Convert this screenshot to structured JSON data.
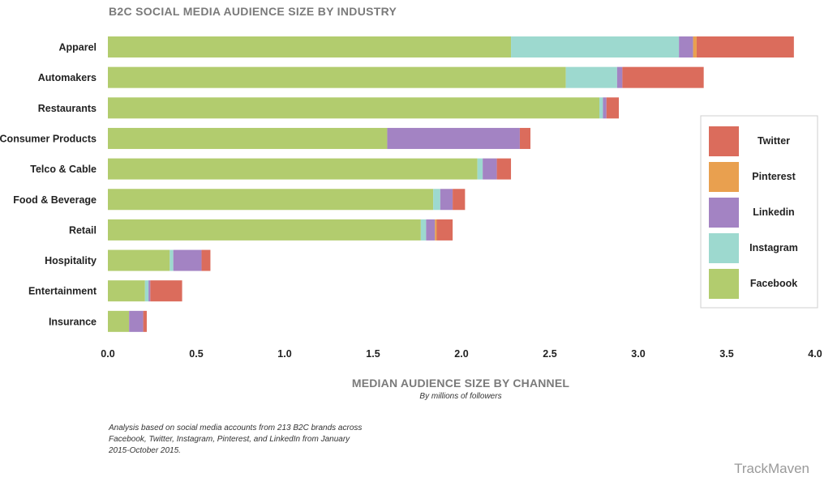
{
  "chart_data": {
    "type": "bar",
    "orientation": "horizontal",
    "stacked": true,
    "title": "B2C SOCIAL MEDIA AUDIENCE SIZE BY INDUSTRY",
    "xlabel": "MEDIAN AUDIENCE SIZE BY CHANNEL",
    "xlabel_sub": "By millions of followers",
    "ylabel": "",
    "xlim": [
      0,
      4.0
    ],
    "xticks": [
      "0.0",
      "0.5",
      "1.0",
      "1.5",
      "2.0",
      "2.5",
      "3.0",
      "3.5",
      "4.0"
    ],
    "grid": false,
    "legend_position": "right",
    "categories": [
      "Apparel",
      "Automakers",
      "Restaurants",
      "Consumer Products",
      "Telco & Cable",
      "Food & Beverage",
      "Retail",
      "Hospitality",
      "Entertainment",
      "Insurance"
    ],
    "series": [
      {
        "name": "Facebook",
        "color": "#b2cc6e",
        "values": [
          2.28,
          2.59,
          2.78,
          1.58,
          2.09,
          1.84,
          1.77,
          0.35,
          0.21,
          0.12
        ]
      },
      {
        "name": "Instagram",
        "color": "#9dd9cf",
        "values": [
          0.95,
          0.29,
          0.02,
          0.0,
          0.03,
          0.04,
          0.03,
          0.02,
          0.02,
          0.0
        ]
      },
      {
        "name": "Linkedin",
        "color": "#a383c3",
        "values": [
          0.08,
          0.03,
          0.02,
          0.75,
          0.08,
          0.07,
          0.05,
          0.16,
          0.01,
          0.08
        ]
      },
      {
        "name": "Pinterest",
        "color": "#e9a04f",
        "values": [
          0.02,
          0.0,
          0.0,
          0.0,
          0.0,
          0.0,
          0.01,
          0.0,
          0.0,
          0.0
        ]
      },
      {
        "name": "Twitter",
        "color": "#db6c5c",
        "values": [
          0.55,
          0.46,
          0.07,
          0.06,
          0.08,
          0.07,
          0.09,
          0.05,
          0.18,
          0.02
        ]
      }
    ],
    "legend_order": [
      "Twitter",
      "Pinterest",
      "Linkedin",
      "Instagram",
      "Facebook"
    ]
  },
  "footnote_lines": [
    "Analysis based on social media accounts from 213 B2C brands across",
    "Facebook, Twitter, Instagram, Pinterest, and LinkedIn from January",
    "2015-October 2015."
  ],
  "brand": "TrackMaven"
}
